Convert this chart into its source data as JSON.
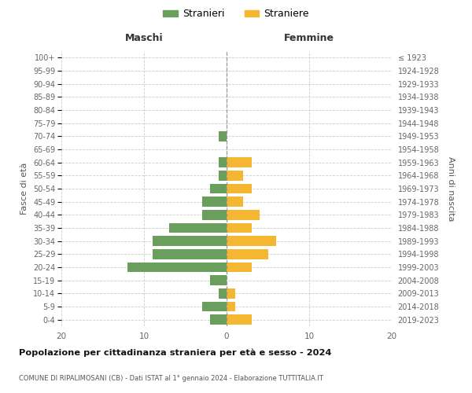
{
  "age_groups": [
    "0-4",
    "5-9",
    "10-14",
    "15-19",
    "20-24",
    "25-29",
    "30-34",
    "35-39",
    "40-44",
    "45-49",
    "50-54",
    "55-59",
    "60-64",
    "65-69",
    "70-74",
    "75-79",
    "80-84",
    "85-89",
    "90-94",
    "95-99",
    "100+"
  ],
  "birth_years": [
    "2019-2023",
    "2014-2018",
    "2009-2013",
    "2004-2008",
    "1999-2003",
    "1994-1998",
    "1989-1993",
    "1984-1988",
    "1979-1983",
    "1974-1978",
    "1969-1973",
    "1964-1968",
    "1959-1963",
    "1954-1958",
    "1949-1953",
    "1944-1948",
    "1939-1943",
    "1934-1938",
    "1929-1933",
    "1924-1928",
    "≤ 1923"
  ],
  "males": [
    2,
    3,
    1,
    2,
    12,
    9,
    9,
    7,
    3,
    3,
    2,
    1,
    1,
    0,
    1,
    0,
    0,
    0,
    0,
    0,
    0
  ],
  "females": [
    3,
    1,
    1,
    0,
    3,
    5,
    6,
    3,
    4,
    2,
    3,
    2,
    3,
    0,
    0,
    0,
    0,
    0,
    0,
    0,
    0
  ],
  "male_color": "#6a9e5c",
  "female_color": "#f5b731",
  "grid_color": "#cccccc",
  "title": "Popolazione per cittadinanza straniera per età e sesso - 2024",
  "subtitle": "COMUNE DI RIPALIMOSANI (CB) - Dati ISTAT al 1° gennaio 2024 - Elaborazione TUTTITALIA.IT",
  "label_maschi": "Maschi",
  "label_femmine": "Femmine",
  "ylabel_left": "Fasce di età",
  "ylabel_right": "Anni di nascita",
  "legend_male": "Stranieri",
  "legend_female": "Straniere",
  "xlim": 20,
  "bar_height": 0.75
}
